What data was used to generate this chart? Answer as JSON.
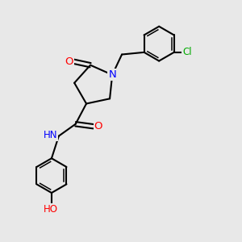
{
  "bg_color": "#e8e8e8",
  "bond_color": "#000000",
  "bond_width": 1.5,
  "atom_colors": {
    "N": "#0000ff",
    "O": "#ff0000",
    "Cl": "#00aa00",
    "C": "#000000",
    "H": "#000000"
  },
  "font_size": 8.5
}
